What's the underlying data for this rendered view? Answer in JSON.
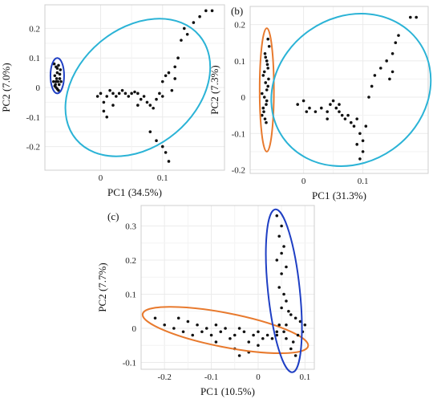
{
  "chart_data": [
    {
      "type": "scatter",
      "panel_label": "",
      "xlabel": "PC1 (34.5%)",
      "ylabel": "PC2 (7.0%)",
      "xlim": [
        -0.09,
        0.2
      ],
      "ylim": [
        -0.28,
        0.28
      ],
      "x_ticks": [
        {
          "v": 0,
          "label": "0"
        },
        {
          "v": 0.1,
          "label": "0.1"
        }
      ],
      "y_ticks": [
        {
          "v": 0.2,
          "label": "0.2"
        },
        {
          "v": 0.1,
          "label": "0.1"
        },
        {
          "v": 0,
          "label": "0"
        },
        {
          "v": -0.1,
          "label": "-0.1"
        },
        {
          "v": -0.2,
          "label": "-0.2"
        }
      ],
      "grid": true,
      "groups": [
        {
          "color": "#1f3fc4",
          "ellipse": {
            "cx": -0.07,
            "cy": 0.04,
            "rx": 0.011,
            "ry": 0.06,
            "angle": 0
          },
          "points": [
            [
              -0.075,
              0.08
            ],
            [
              -0.072,
              0.07
            ],
            [
              -0.068,
              0.075
            ],
            [
              -0.065,
              0.06
            ],
            [
              -0.07,
              0.05
            ],
            [
              -0.074,
              0.04
            ],
            [
              -0.071,
              0.03
            ],
            [
              -0.066,
              0.03
            ],
            [
              -0.069,
              0.02
            ],
            [
              -0.073,
              0.01
            ],
            [
              -0.067,
              0.01
            ],
            [
              -0.072,
              0.0
            ],
            [
              -0.064,
              0.02
            ],
            [
              -0.07,
              -0.005
            ],
            [
              -0.076,
              0.02
            ],
            [
              -0.068,
              -0.01
            ],
            [
              -0.072,
              0.02
            ],
            [
              -0.066,
              0.045
            ],
            [
              -0.07,
              0.065
            ],
            [
              -0.074,
              0.005
            ]
          ]
        },
        {
          "color": "#2bb3d6",
          "ellipse": {
            "cx": 0.06,
            "cy": 0.0,
            "rx": 0.13,
            "ry": 0.2,
            "angle": -40
          },
          "points": [
            [
              -0.005,
              -0.03
            ],
            [
              0.0,
              -0.02
            ],
            [
              0.005,
              -0.05
            ],
            [
              0.01,
              -0.03
            ],
            [
              0.015,
              -0.01
            ],
            [
              0.02,
              -0.02
            ],
            [
              0.025,
              -0.03
            ],
            [
              0.03,
              -0.02
            ],
            [
              0.035,
              -0.01
            ],
            [
              0.04,
              -0.02
            ],
            [
              0.045,
              -0.03
            ],
            [
              0.05,
              -0.02
            ],
            [
              0.055,
              -0.015
            ],
            [
              0.06,
              -0.02
            ],
            [
              0.065,
              -0.04
            ],
            [
              0.07,
              -0.03
            ],
            [
              0.075,
              -0.05
            ],
            [
              0.08,
              -0.06
            ],
            [
              0.085,
              -0.07
            ],
            [
              0.09,
              -0.04
            ],
            [
              0.095,
              -0.02
            ],
            [
              0.1,
              -0.03
            ],
            [
              0.005,
              -0.08
            ],
            [
              0.01,
              -0.1
            ],
            [
              0.08,
              -0.15
            ],
            [
              0.09,
              -0.18
            ],
            [
              0.1,
              -0.2
            ],
            [
              0.105,
              -0.22
            ],
            [
              0.11,
              -0.25
            ],
            [
              0.1,
              0.02
            ],
            [
              0.105,
              0.04
            ],
            [
              0.11,
              0.05
            ],
            [
              0.12,
              0.07
            ],
            [
              0.125,
              0.1
            ],
            [
              0.13,
              0.16
            ],
            [
              0.135,
              0.2
            ],
            [
              0.14,
              0.18
            ],
            [
              0.15,
              0.22
            ],
            [
              0.16,
              0.24
            ],
            [
              0.17,
              0.26
            ],
            [
              0.18,
              0.26
            ],
            [
              0.12,
              0.03
            ],
            [
              0.115,
              -0.01
            ],
            [
              0.02,
              -0.06
            ],
            [
              0.06,
              -0.06
            ]
          ]
        }
      ]
    },
    {
      "type": "scatter",
      "panel_label": "(b)",
      "xlabel": "PC1 (31.3%)",
      "ylabel": "PC2 (7.3%)",
      "xlim": [
        -0.09,
        0.21
      ],
      "ylim": [
        -0.21,
        0.25
      ],
      "x_ticks": [
        {
          "v": 0,
          "label": "0"
        },
        {
          "v": 0.1,
          "label": "0.1"
        }
      ],
      "y_ticks": [
        {
          "v": 0.2,
          "label": "0.2"
        },
        {
          "v": 0.1,
          "label": "0.1"
        },
        {
          "v": 0,
          "label": "0"
        },
        {
          "v": -0.1,
          "label": "-0.1"
        },
        {
          "v": -0.2,
          "label": "-0.2"
        }
      ],
      "grid": true,
      "groups": [
        {
          "color": "#e87a2e",
          "ellipse": {
            "cx": -0.062,
            "cy": 0.02,
            "rx": 0.012,
            "ry": 0.17,
            "angle": 0
          },
          "points": [
            [
              -0.06,
              0.16
            ],
            [
              -0.058,
              0.14
            ],
            [
              -0.065,
              0.12
            ],
            [
              -0.062,
              0.1
            ],
            [
              -0.06,
              0.08
            ],
            [
              -0.068,
              0.06
            ],
            [
              -0.064,
              0.04
            ],
            [
              -0.062,
              0.02
            ],
            [
              -0.066,
              0.0
            ],
            [
              -0.07,
              0.01
            ],
            [
              -0.06,
              0.03
            ],
            [
              -0.063,
              -0.02
            ],
            [
              -0.067,
              -0.04
            ],
            [
              -0.065,
              -0.06
            ],
            [
              -0.07,
              -0.05
            ],
            [
              -0.062,
              -0.01
            ],
            [
              -0.066,
              0.07
            ],
            [
              -0.059,
              0.05
            ],
            [
              -0.064,
              0.11
            ],
            [
              -0.068,
              -0.03
            ],
            [
              -0.061,
              0.09
            ],
            [
              -0.063,
              -0.07
            ]
          ]
        },
        {
          "color": "#2bb3d6",
          "ellipse": {
            "cx": 0.08,
            "cy": 0.02,
            "rx": 0.14,
            "ry": 0.2,
            "angle": -35
          },
          "points": [
            [
              -0.01,
              -0.02
            ],
            [
              0.0,
              -0.01
            ],
            [
              0.005,
              -0.04
            ],
            [
              0.01,
              -0.03
            ],
            [
              0.02,
              -0.04
            ],
            [
              0.03,
              -0.03
            ],
            [
              0.04,
              -0.04
            ],
            [
              0.045,
              -0.02
            ],
            [
              0.05,
              -0.01
            ],
            [
              0.055,
              -0.03
            ],
            [
              0.06,
              -0.04
            ],
            [
              0.065,
              -0.05
            ],
            [
              0.07,
              -0.06
            ],
            [
              0.075,
              -0.05
            ],
            [
              0.08,
              -0.07
            ],
            [
              0.085,
              -0.08
            ],
            [
              0.09,
              -0.06
            ],
            [
              0.095,
              -0.1
            ],
            [
              0.1,
              -0.12
            ],
            [
              0.1,
              -0.15
            ],
            [
              0.095,
              -0.17
            ],
            [
              0.09,
              -0.13
            ],
            [
              0.105,
              -0.08
            ],
            [
              0.11,
              0.0
            ],
            [
              0.115,
              0.03
            ],
            [
              0.12,
              0.06
            ],
            [
              0.13,
              0.08
            ],
            [
              0.14,
              0.1
            ],
            [
              0.15,
              0.12
            ],
            [
              0.155,
              0.15
            ],
            [
              0.16,
              0.17
            ],
            [
              0.18,
              0.22
            ],
            [
              0.19,
              0.22
            ],
            [
              0.145,
              0.05
            ],
            [
              0.15,
              0.07
            ],
            [
              0.06,
              -0.02
            ],
            [
              0.04,
              -0.06
            ]
          ]
        }
      ]
    },
    {
      "type": "scatter",
      "panel_label": "(c)",
      "xlabel": "PC1 (10.5%)",
      "ylabel": "PC2 (7.7%)",
      "xlim": [
        -0.25,
        0.12
      ],
      "ylim": [
        -0.12,
        0.36
      ],
      "x_ticks": [
        {
          "v": -0.2,
          "label": "-0.2"
        },
        {
          "v": -0.1,
          "label": "-0.1"
        },
        {
          "v": 0,
          "label": "0"
        },
        {
          "v": 0.1,
          "label": "0.1"
        }
      ],
      "y_ticks": [
        {
          "v": 0.3,
          "label": "0.3"
        },
        {
          "v": 0.2,
          "label": "0.2"
        },
        {
          "v": 0.1,
          "label": "0.1"
        },
        {
          "v": 0,
          "label": "0"
        },
        {
          "v": -0.1,
          "label": "-0.1"
        }
      ],
      "grid": true,
      "groups": [
        {
          "color": "#e87a2e",
          "ellipse": {
            "cx": -0.07,
            "cy": -0.005,
            "rx": 0.18,
            "ry": 0.05,
            "angle": 11
          },
          "points": [
            [
              -0.22,
              0.03
            ],
            [
              -0.2,
              0.01
            ],
            [
              -0.18,
              0.0
            ],
            [
              -0.17,
              0.03
            ],
            [
              -0.15,
              0.02
            ],
            [
              -0.13,
              0.01
            ],
            [
              -0.12,
              -0.01
            ],
            [
              -0.11,
              0.0
            ],
            [
              -0.1,
              -0.02
            ],
            [
              -0.09,
              0.01
            ],
            [
              -0.08,
              -0.01
            ],
            [
              -0.07,
              0.0
            ],
            [
              -0.06,
              -0.03
            ],
            [
              -0.05,
              -0.02
            ],
            [
              -0.04,
              0.0
            ],
            [
              -0.03,
              -0.01
            ],
            [
              -0.02,
              -0.04
            ],
            [
              -0.01,
              -0.02
            ],
            [
              0.0,
              -0.01
            ],
            [
              0.01,
              -0.03
            ],
            [
              0.02,
              -0.02
            ],
            [
              0.03,
              -0.03
            ],
            [
              0.04,
              -0.01
            ],
            [
              -0.05,
              -0.06
            ],
            [
              -0.04,
              -0.08
            ],
            [
              -0.02,
              -0.07
            ],
            [
              0.0,
              -0.05
            ],
            [
              -0.09,
              -0.04
            ],
            [
              -0.14,
              -0.02
            ],
            [
              -0.16,
              -0.01
            ]
          ]
        },
        {
          "color": "#1f3fc4",
          "ellipse": {
            "cx": 0.055,
            "cy": 0.11,
            "rx": 0.034,
            "ry": 0.24,
            "angle": -6
          },
          "points": [
            [
              0.04,
              0.33
            ],
            [
              0.05,
              0.3
            ],
            [
              0.045,
              0.27
            ],
            [
              0.055,
              0.24
            ],
            [
              0.05,
              0.22
            ],
            [
              0.06,
              0.18
            ],
            [
              0.04,
              0.2
            ],
            [
              0.05,
              0.16
            ],
            [
              0.045,
              0.12
            ],
            [
              0.055,
              0.1
            ],
            [
              0.06,
              0.08
            ],
            [
              0.05,
              0.06
            ],
            [
              0.065,
              0.05
            ],
            [
              0.07,
              0.04
            ],
            [
              0.08,
              0.03
            ],
            [
              0.09,
              0.02
            ],
            [
              0.1,
              0.01
            ],
            [
              0.095,
              -0.01
            ],
            [
              0.085,
              -0.02
            ],
            [
              0.075,
              -0.04
            ],
            [
              0.07,
              -0.06
            ],
            [
              0.08,
              -0.08
            ],
            [
              0.06,
              -0.03
            ],
            [
              0.055,
              -0.01
            ],
            [
              0.045,
              0.01
            ],
            [
              0.04,
              -0.02
            ],
            [
              0.06,
              0.01
            ]
          ]
        }
      ]
    }
  ]
}
